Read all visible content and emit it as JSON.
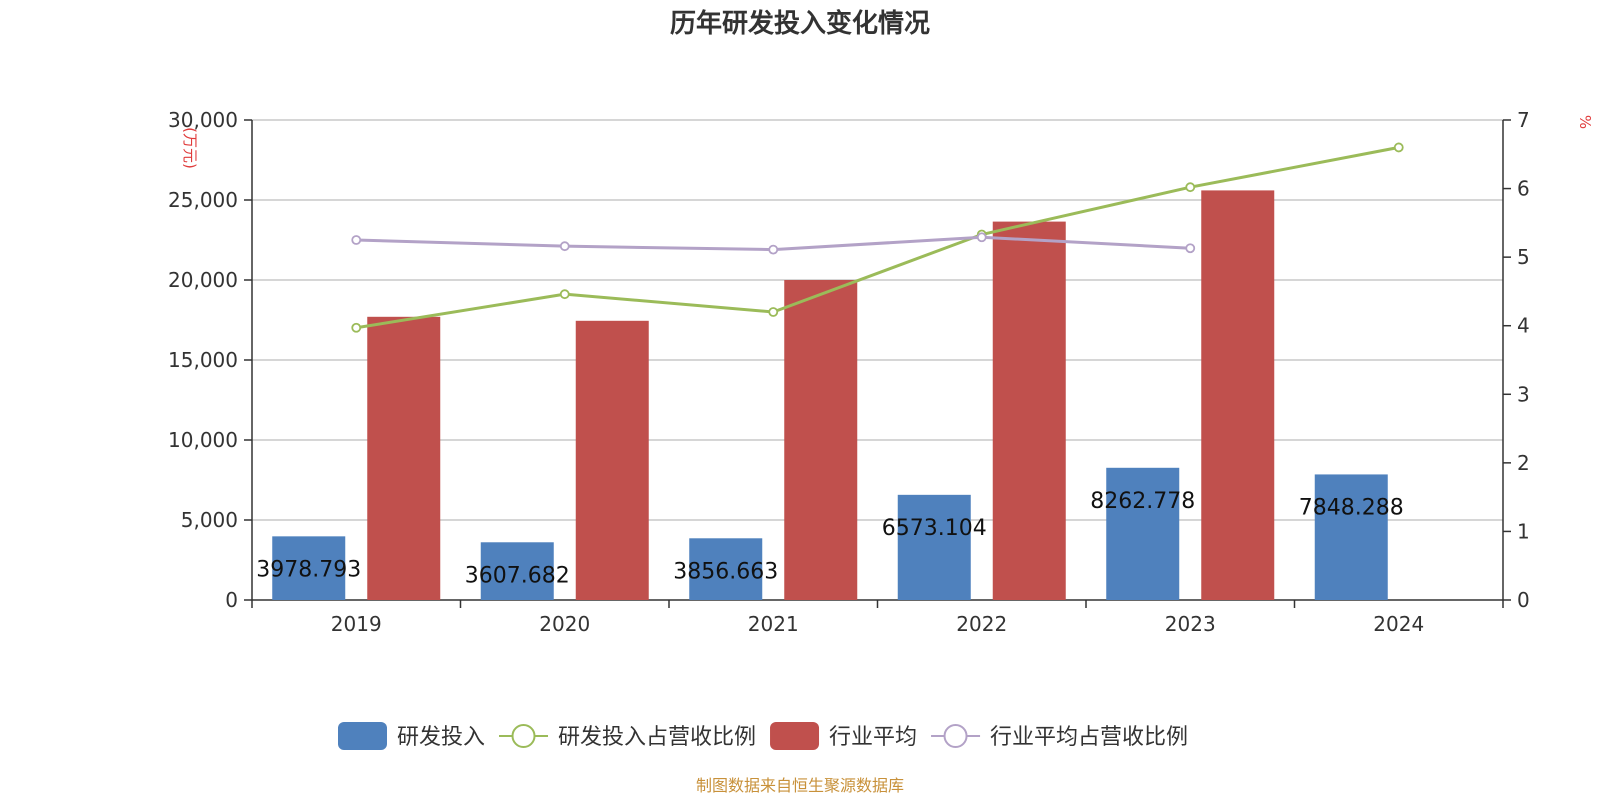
{
  "chart_data": {
    "type": "bar",
    "title": "历年研发投入变化情况",
    "categories": [
      "2019",
      "2020",
      "2021",
      "2022",
      "2023",
      "2024"
    ],
    "left_axis": {
      "unit": "(万元)",
      "ylim": [
        0,
        30000
      ],
      "ticks": [
        0,
        5000,
        10000,
        15000,
        20000,
        25000,
        30000
      ],
      "tick_labels": [
        "0",
        "5,000",
        "10,000",
        "15,000",
        "20,000",
        "25,000",
        "30,000"
      ]
    },
    "right_axis": {
      "unit": "%",
      "ylim": [
        0,
        7
      ],
      "ticks": [
        0,
        1,
        2,
        3,
        4,
        5,
        6,
        7
      ],
      "tick_labels": [
        "0",
        "1",
        "2",
        "3",
        "4",
        "5",
        "6",
        "7"
      ]
    },
    "series": [
      {
        "name": "研发投入",
        "type": "bar",
        "axis": "left",
        "color": "#4f81bd",
        "values": [
          3978.793,
          3607.682,
          3856.663,
          6573.104,
          8262.778,
          7848.288
        ],
        "labels": [
          "3978.793",
          "3607.682",
          "3856.663",
          "6573.104",
          "8262.778",
          "7848.288"
        ]
      },
      {
        "name": "研发投入占营收比例",
        "type": "line",
        "axis": "right",
        "color": "#9bbb59",
        "values": [
          3.97,
          4.46,
          4.2,
          5.33,
          6.02,
          6.6
        ]
      },
      {
        "name": "行业平均",
        "type": "bar",
        "axis": "left",
        "color": "#c0504d",
        "values": [
          17700,
          17450,
          20000,
          23650,
          25600,
          null
        ]
      },
      {
        "name": "行业平均占营收比例",
        "type": "line",
        "axis": "right",
        "color": "#b3a2c7",
        "values": [
          5.25,
          5.16,
          5.11,
          5.29,
          5.13,
          null
        ]
      }
    ],
    "grid": true,
    "legend_position": "bottom"
  },
  "source_text": "制图数据来自恒生聚源数据库"
}
